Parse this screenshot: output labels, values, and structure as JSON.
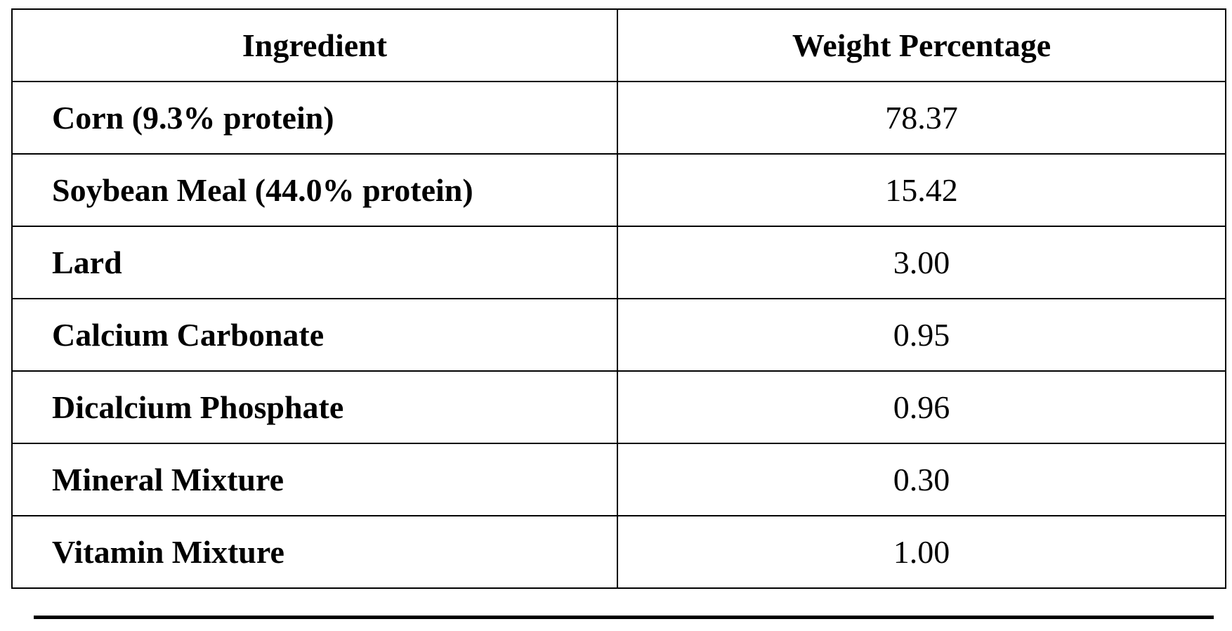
{
  "table": {
    "headers": [
      "Ingredient",
      "Weight Percentage"
    ],
    "rows": [
      {
        "ingredient": "Corn (9.3% protein)",
        "weight": "78.37"
      },
      {
        "ingredient": "Soybean Meal (44.0% protein)",
        "weight": "15.42"
      },
      {
        "ingredient": "Lard",
        "weight": "3.00"
      },
      {
        "ingredient": "Calcium Carbonate",
        "weight": "0.95"
      },
      {
        "ingredient": "Dicalcium Phosphate",
        "weight": "0.96"
      },
      {
        "ingredient": "Mineral Mixture",
        "weight": "0.30"
      },
      {
        "ingredient": "Vitamin Mixture",
        "weight": "1.00"
      }
    ]
  }
}
